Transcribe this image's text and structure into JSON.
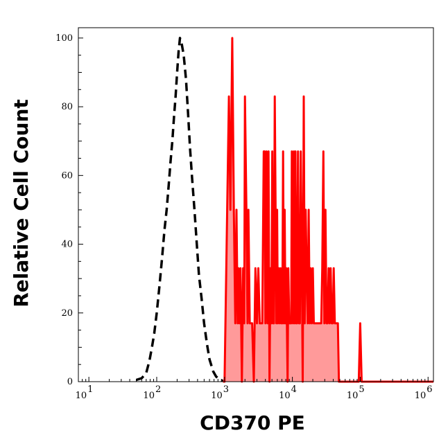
{
  "chart_data": {
    "type": "area",
    "title": "",
    "xlabel": "CD370 PE",
    "ylabel": "Relative Cell Count",
    "x_scale": "log",
    "xlim": [
      7,
      1200000
    ],
    "ylim": [
      0,
      103
    ],
    "grid": false,
    "legend": "none",
    "x_ticks": [
      {
        "value": 10,
        "base": "10",
        "exp": "1"
      },
      {
        "value": 100,
        "base": "10",
        "exp": "2"
      },
      {
        "value": 1000,
        "base": "10",
        "exp": "3"
      },
      {
        "value": 10000,
        "base": "10",
        "exp": "4"
      },
      {
        "value": 100000,
        "base": "10",
        "exp": "5"
      },
      {
        "value": 1000000,
        "base": "10",
        "exp": "6"
      }
    ],
    "y_ticks": [
      {
        "value": 0,
        "label": "0"
      },
      {
        "value": 20,
        "label": "20"
      },
      {
        "value": 40,
        "label": "40"
      },
      {
        "value": 60,
        "label": "60"
      },
      {
        "value": 80,
        "label": "80"
      },
      {
        "value": 100,
        "label": "100"
      }
    ],
    "series": [
      {
        "style": "dashed-line",
        "color": "#000000",
        "points": [
          [
            50,
            0.5
          ],
          [
            60,
            1
          ],
          [
            70,
            2.5
          ],
          [
            78,
            6
          ],
          [
            85,
            10
          ],
          [
            92,
            14
          ],
          [
            100,
            20
          ],
          [
            110,
            28
          ],
          [
            120,
            36
          ],
          [
            130,
            44
          ],
          [
            140,
            50
          ],
          [
            150,
            57
          ],
          [
            160,
            64
          ],
          [
            170,
            70
          ],
          [
            180,
            77
          ],
          [
            190,
            83
          ],
          [
            200,
            90
          ],
          [
            210,
            96
          ],
          [
            220,
            100
          ],
          [
            235,
            98
          ],
          [
            250,
            95
          ],
          [
            270,
            88
          ],
          [
            290,
            78
          ],
          [
            310,
            68
          ],
          [
            330,
            60
          ],
          [
            360,
            50
          ],
          [
            390,
            40
          ],
          [
            420,
            31
          ],
          [
            460,
            24
          ],
          [
            500,
            17
          ],
          [
            550,
            11
          ],
          [
            600,
            6.5
          ],
          [
            680,
            3
          ],
          [
            750,
            1.5
          ],
          [
            850,
            0.6
          ],
          [
            950,
            0.2
          ]
        ]
      },
      {
        "style": "filled",
        "color": "#ff0000",
        "fill": "#ff9a9a",
        "points": [
          [
            950,
            0
          ],
          [
            1000,
            0
          ],
          [
            1160,
            83
          ],
          [
            1220,
            50
          ],
          [
            1300,
            100
          ],
          [
            1370,
            50
          ],
          [
            1440,
            17
          ],
          [
            1500,
            50
          ],
          [
            1560,
            17
          ],
          [
            1600,
            33
          ],
          [
            1660,
            17
          ],
          [
            1720,
            33
          ],
          [
            1800,
            0
          ],
          [
            1880,
            33
          ],
          [
            1950,
            17
          ],
          [
            2000,
            83
          ],
          [
            2100,
            50
          ],
          [
            2180,
            17
          ],
          [
            2250,
            50
          ],
          [
            2350,
            17
          ],
          [
            2450,
            17
          ],
          [
            2550,
            17
          ],
          [
            2700,
            0
          ],
          [
            2850,
            33
          ],
          [
            3000,
            17
          ],
          [
            3150,
            33
          ],
          [
            3300,
            17
          ],
          [
            3450,
            17
          ],
          [
            3600,
            17
          ],
          [
            3780,
            67
          ],
          [
            3900,
            67
          ],
          [
            4000,
            17
          ],
          [
            4150,
            67
          ],
          [
            4300,
            17
          ],
          [
            4450,
            67
          ],
          [
            4600,
            0
          ],
          [
            4750,
            33
          ],
          [
            4900,
            17
          ],
          [
            5050,
            67
          ],
          [
            5200,
            17
          ],
          [
            5350,
            17
          ],
          [
            5500,
            83
          ],
          [
            5650,
            50
          ],
          [
            5800,
            17
          ],
          [
            5950,
            50
          ],
          [
            6100,
            17
          ],
          [
            6300,
            33
          ],
          [
            6500,
            17
          ],
          [
            6700,
            33
          ],
          [
            6900,
            17
          ],
          [
            7100,
            17
          ],
          [
            7300,
            67
          ],
          [
            7500,
            17
          ],
          [
            7700,
            50
          ],
          [
            7900,
            17
          ],
          [
            8100,
            33
          ],
          [
            8300,
            17
          ],
          [
            8500,
            0
          ],
          [
            8700,
            33
          ],
          [
            9000,
            17
          ],
          [
            9300,
            17
          ],
          [
            9600,
            17
          ],
          [
            9800,
            67
          ],
          [
            10200,
            17
          ],
          [
            10500,
            67
          ],
          [
            10800,
            17
          ],
          [
            11100,
            67
          ],
          [
            11400,
            17
          ],
          [
            11700,
            17
          ],
          [
            12100,
            67
          ],
          [
            12500,
            17
          ],
          [
            12900,
            17
          ],
          [
            13300,
            67
          ],
          [
            13800,
            33
          ],
          [
            14200,
            0
          ],
          [
            14700,
            83
          ],
          [
            15200,
            17
          ],
          [
            15700,
            50
          ],
          [
            16200,
            33
          ],
          [
            16800,
            17
          ],
          [
            17400,
            50
          ],
          [
            18000,
            17
          ],
          [
            18600,
            33
          ],
          [
            19300,
            17
          ],
          [
            20000,
            33
          ],
          [
            20700,
            17
          ],
          [
            21500,
            17
          ],
          [
            22300,
            17
          ],
          [
            23100,
            17
          ],
          [
            24000,
            17
          ],
          [
            24800,
            17
          ],
          [
            25700,
            17
          ],
          [
            26600,
            17
          ],
          [
            27600,
            33
          ],
          [
            28600,
            67
          ],
          [
            29600,
            17
          ],
          [
            30700,
            50
          ],
          [
            31800,
            17
          ],
          [
            33000,
            17
          ],
          [
            34200,
            33
          ],
          [
            35400,
            17
          ],
          [
            36700,
            33
          ],
          [
            38000,
            17
          ],
          [
            39300,
            17
          ],
          [
            40700,
            33
          ],
          [
            42200,
            17
          ],
          [
            43700,
            17
          ],
          [
            45200,
            17
          ],
          [
            46800,
            17
          ],
          [
            48500,
            0
          ],
          [
            50000,
            0
          ],
          [
            95000,
            0
          ],
          [
            100000,
            17
          ],
          [
            105000,
            0
          ],
          [
            1200000,
            0
          ]
        ]
      }
    ]
  }
}
